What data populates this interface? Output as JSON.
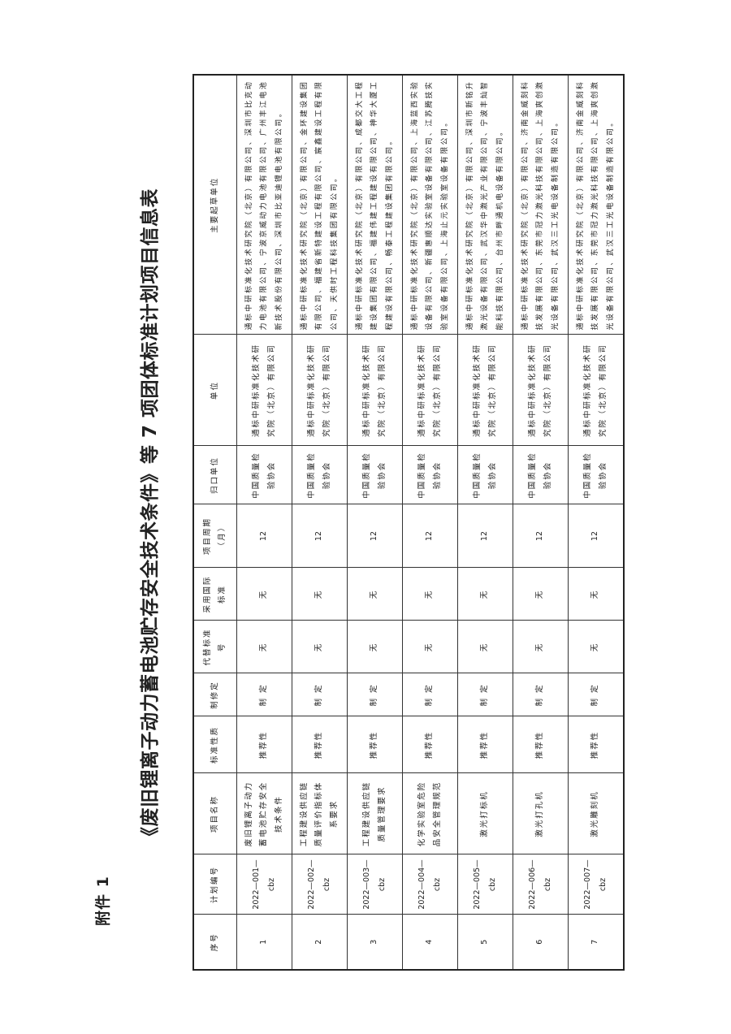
{
  "attachment_label": "附件 1",
  "title": "《废旧锂离子动力蓄电池贮存安全技术条件》等 7 项团体标准计划项目信息表",
  "table": {
    "headers": [
      "序号",
      "计划编号",
      "项目名称",
      "标准性质",
      "制修定",
      "代替标准号",
      "采用国际标准",
      "项目周期（月）",
      "归口单位",
      "单位",
      "主要起草单位"
    ],
    "rows": [
      {
        "no": "1",
        "code": "2022—001—cbz",
        "name": "废旧锂离子动力蓄电池贮存安全技术条件",
        "nature": "推荐性",
        "type": "制 定",
        "replace": "无",
        "intl": "无",
        "period": "12",
        "authority": "中国质量检验协会",
        "unit": "通标中研标准化技术研究院（北京）有限公司",
        "drafters": "通标中研标准化技术研究院（北京）有限公司、深圳市比克动力电池有限公司、宁波京威动力电池有限公司、广州丰江电池新技术股份有限公司、深圳市比亚迪锂电池有限公司。"
      },
      {
        "no": "2",
        "code": "2022—002—cbz",
        "name": "工程建设供应链质量评价指标体系要求",
        "nature": "推荐性",
        "type": "制 定",
        "replace": "无",
        "intl": "无",
        "period": "12",
        "authority": "中国质量检验协会",
        "unit": "通标中研标准化技术研究院（北京）有限公司",
        "drafters": "通标中研标准化技术研究院（北京）有限公司、金环建设集团有限公司、福建省新特建设工程有限公司、宸鑫建设工程有限公司、天供时工程科技集团有限公司。"
      },
      {
        "no": "3",
        "code": "2022—003—cbz",
        "name": "工程建设供应链质量管理要求",
        "nature": "推荐性",
        "type": "制 定",
        "replace": "无",
        "intl": "无",
        "period": "12",
        "authority": "中国质量检验协会",
        "unit": "通标中研标准化技术研究院（北京）有限公司",
        "drafters": "通标中研标准化技术研究院（北京）有限公司、成都交大工程建设集团有限公司、福建伟建工程建设有限公司、神华大厦工程建设有限公司、畅泰工程建设集团有限公司。"
      },
      {
        "no": "4",
        "code": "2022—004—cbz",
        "name": "化学实验室危险品安全管理规范",
        "nature": "推荐性",
        "type": "制 定",
        "replace": "无",
        "intl": "无",
        "period": "12",
        "authority": "中国质量检验协会",
        "unit": "通标中研标准化技术研究院（北京）有限公司",
        "drafters": "通标中研标准化技术研究院（北京）有限公司、上海蓝西实验设备有限公司、新疆惠顺达实验室设备有限公司、江苏腾技实验室设备有限公司、上海止元实验室设备有限公司。"
      },
      {
        "no": "5",
        "code": "2022—005—cbz",
        "name": "激光打标机",
        "nature": "推荐性",
        "type": "制 定",
        "replace": "无",
        "intl": "无",
        "period": "12",
        "authority": "中国质量检验协会",
        "unit": "通标中研标准化技术研究院（北京）有限公司",
        "drafters": "通标中研标准化技术研究院（北京）有限公司、深圳市新铭升激光设备有限公司、武汉华中激光产业有限公司、宁波丰灿智能科技有限公司、台州市畔通机电设备有限公司。"
      },
      {
        "no": "6",
        "code": "2022—006—cbz",
        "name": "激光打孔机",
        "nature": "推荐性",
        "type": "制 定",
        "replace": "无",
        "intl": "无",
        "period": "12",
        "authority": "中国质量检验协会",
        "unit": "通标中研标准化技术研究院（北京）有限公司",
        "drafters": "通标中研标准化技术研究院（北京）有限公司、济南金威刻科技发展有限公司、东莞市冠力激光科技有限公司、上海爽创激光设备有限公司、武汉三工光电设备制造有限公司。"
      },
      {
        "no": "7",
        "code": "2022—007—cbz",
        "name": "激光雕刻机",
        "nature": "推荐性",
        "type": "制 定",
        "replace": "无",
        "intl": "无",
        "period": "12",
        "authority": "中国质量检验协会",
        "unit": "通标中研标准化技术研究院（北京）有限公司",
        "drafters": "通标中研标准化技术研究院（北京）有限公司、济南金威刻科技发展有限公司、东莞市冠力激光科技有限公司、上海爽创激光设备有限公司、武汉三工光电设备制造有限公司。"
      }
    ]
  }
}
